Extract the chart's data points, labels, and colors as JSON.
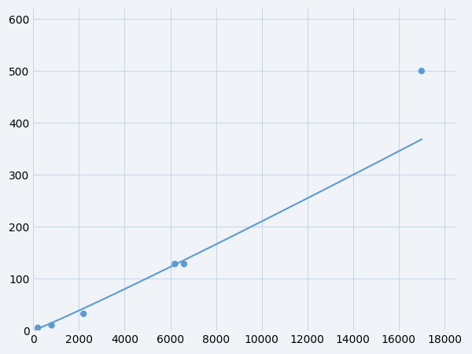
{
  "x": [
    200,
    800,
    2200,
    6200,
    6600,
    17000
  ],
  "y": [
    5,
    10,
    32,
    128,
    128,
    500
  ],
  "line_color": "#5b9bd5",
  "marker_color": "#5b9bd5",
  "marker_size": 6,
  "line_width": 1.5,
  "xlim": [
    0,
    18500
  ],
  "ylim": [
    0,
    620
  ],
  "xticks": [
    0,
    2000,
    4000,
    6000,
    8000,
    10000,
    12000,
    14000,
    16000,
    18000
  ],
  "yticks": [
    0,
    100,
    200,
    300,
    400,
    500,
    600
  ],
  "grid_color": "#c8d8e8",
  "background_color": "#f0f4f8",
  "tick_fontsize": 10
}
